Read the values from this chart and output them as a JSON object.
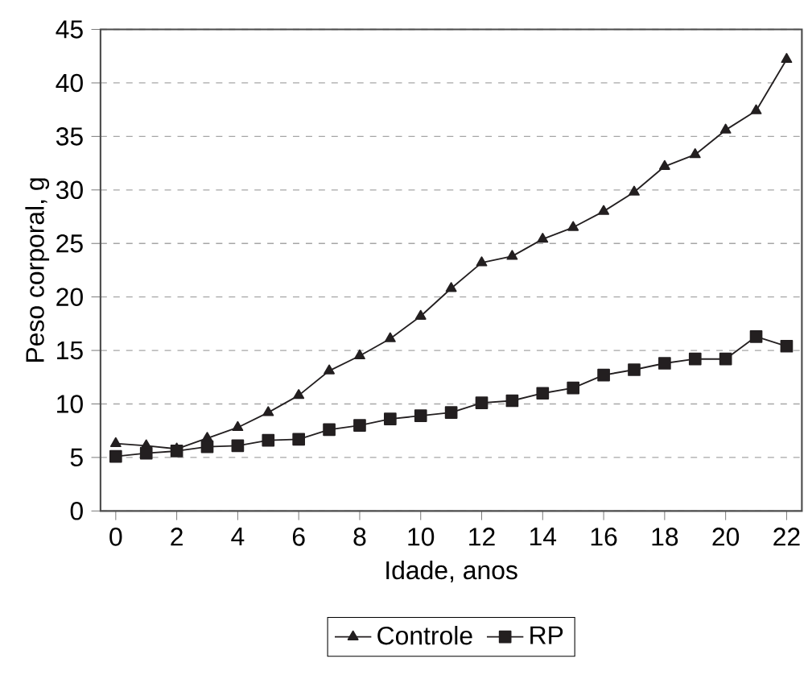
{
  "chart_data": {
    "type": "line",
    "xlabel": "Idade, anos",
    "ylabel": "Peso corporal, g",
    "x": [
      0,
      1,
      2,
      3,
      4,
      5,
      6,
      7,
      8,
      9,
      10,
      11,
      12,
      13,
      14,
      15,
      16,
      17,
      18,
      19,
      20,
      21,
      22
    ],
    "series": [
      {
        "name": "Controle",
        "color": "#231f20",
        "marker": "triangle",
        "values": [
          6.3,
          6.1,
          5.8,
          6.8,
          7.8,
          9.2,
          10.8,
          13.1,
          14.5,
          16.1,
          18.2,
          20.8,
          23.2,
          23.8,
          25.4,
          26.5,
          28.0,
          29.8,
          32.2,
          33.3,
          35.6,
          37.4,
          42.2
        ]
      },
      {
        "name": "RP",
        "color": "#231f20",
        "marker": "square",
        "values": [
          5.1,
          5.4,
          5.6,
          6.0,
          6.1,
          6.6,
          6.7,
          7.6,
          8.0,
          8.6,
          8.9,
          9.2,
          10.1,
          10.3,
          11.0,
          11.5,
          12.7,
          13.2,
          13.8,
          14.2,
          14.2,
          16.3,
          15.4
        ]
      }
    ],
    "xlim": [
      -0.5,
      22.5
    ],
    "xticks": [
      0,
      2,
      4,
      6,
      8,
      10,
      12,
      14,
      16,
      18,
      20,
      22
    ],
    "ylim": [
      0,
      45
    ],
    "yticks": [
      0,
      5,
      10,
      15,
      20,
      25,
      30,
      35,
      40,
      45
    ],
    "grid": "y",
    "legend": "bottom"
  }
}
